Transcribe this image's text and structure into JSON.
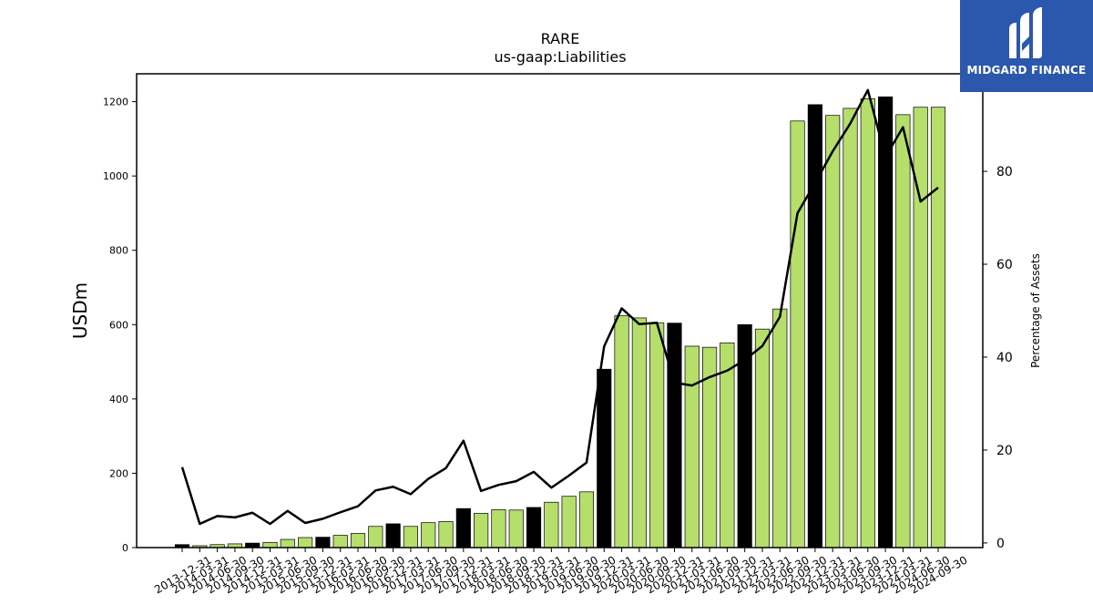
{
  "logo": {
    "text": "MIDGARD FINANCE",
    "bg_color": "#2b57ad"
  },
  "chart_data": {
    "type": "bar",
    "title": "RARE",
    "subtitle": "us-gaap:Liabilities",
    "ylabel": "USDm",
    "y2label": "Percentage of Assets",
    "ylim": [
      0,
      1275
    ],
    "y2lim": [
      -1,
      101
    ],
    "yticks": [
      0,
      200,
      400,
      600,
      800,
      1000,
      1200
    ],
    "y2ticks": [
      0,
      20,
      40,
      60,
      80
    ],
    "bar_color": "#b5de6b",
    "highlight_color": "#000000",
    "line_color": "#000000",
    "categories": [
      "2013-12-31",
      "2014-03-31",
      "2014-06-30",
      "2014-09-30",
      "2014-12-31",
      "2015-03-31",
      "2015-06-30",
      "2015-09-30",
      "2015-12-31",
      "2016-03-31",
      "2016-06-30",
      "2016-09-30",
      "2016-12-31",
      "2017-03-31",
      "2017-06-30",
      "2017-09-30",
      "2017-12-31",
      "2018-03-31",
      "2018-06-30",
      "2018-09-30",
      "2018-12-31",
      "2019-03-31",
      "2019-06-30",
      "2019-09-30",
      "2019-12-31",
      "2020-03-31",
      "2020-06-30",
      "2020-09-30",
      "2020-12-31",
      "2021-03-31",
      "2021-06-30",
      "2021-09-30",
      "2021-12-31",
      "2022-03-31",
      "2022-06-30",
      "2022-09-30",
      "2022-12-31",
      "2023-03-31",
      "2023-06-30",
      "2023-09-30",
      "2023-12-31",
      "2024-03-31",
      "2024-06-30",
      "2024-09-30"
    ],
    "highlight": [
      true,
      false,
      false,
      false,
      true,
      false,
      false,
      false,
      true,
      false,
      false,
      false,
      true,
      false,
      false,
      false,
      true,
      false,
      false,
      false,
      true,
      false,
      false,
      false,
      true,
      false,
      false,
      false,
      true,
      false,
      false,
      false,
      true,
      false,
      false,
      false,
      true,
      false,
      false,
      false,
      true,
      false,
      false,
      false
    ],
    "values": [
      8,
      5,
      8,
      10,
      12,
      14,
      22,
      27,
      28,
      33,
      38,
      57,
      64,
      57,
      67,
      70,
      105,
      92,
      102,
      101,
      108,
      122,
      138,
      150,
      480,
      624,
      618,
      605,
      604,
      542,
      539,
      551,
      600,
      588,
      642,
      1148,
      1192,
      1163,
      1182,
      1208,
      1213,
      1165,
      1185,
      1185
    ],
    "pct_assets": [
      16.3,
      4.1,
      5.8,
      5.5,
      6.5,
      4.1,
      6.9,
      4.3,
      5.2,
      6.6,
      7.9,
      11.3,
      12.1,
      10.5,
      13.8,
      16.1,
      22.0,
      11.2,
      12.5,
      13.3,
      15.3,
      11.9,
      14.5,
      17.3,
      42.3,
      50.5,
      47.1,
      47.4,
      34.5,
      33.9,
      35.7,
      37.1,
      39.4,
      42.4,
      48.7,
      71.0,
      77.5,
      84.3,
      90.3,
      97.5,
      83.1,
      89.5,
      73.5,
      76.5
    ]
  }
}
